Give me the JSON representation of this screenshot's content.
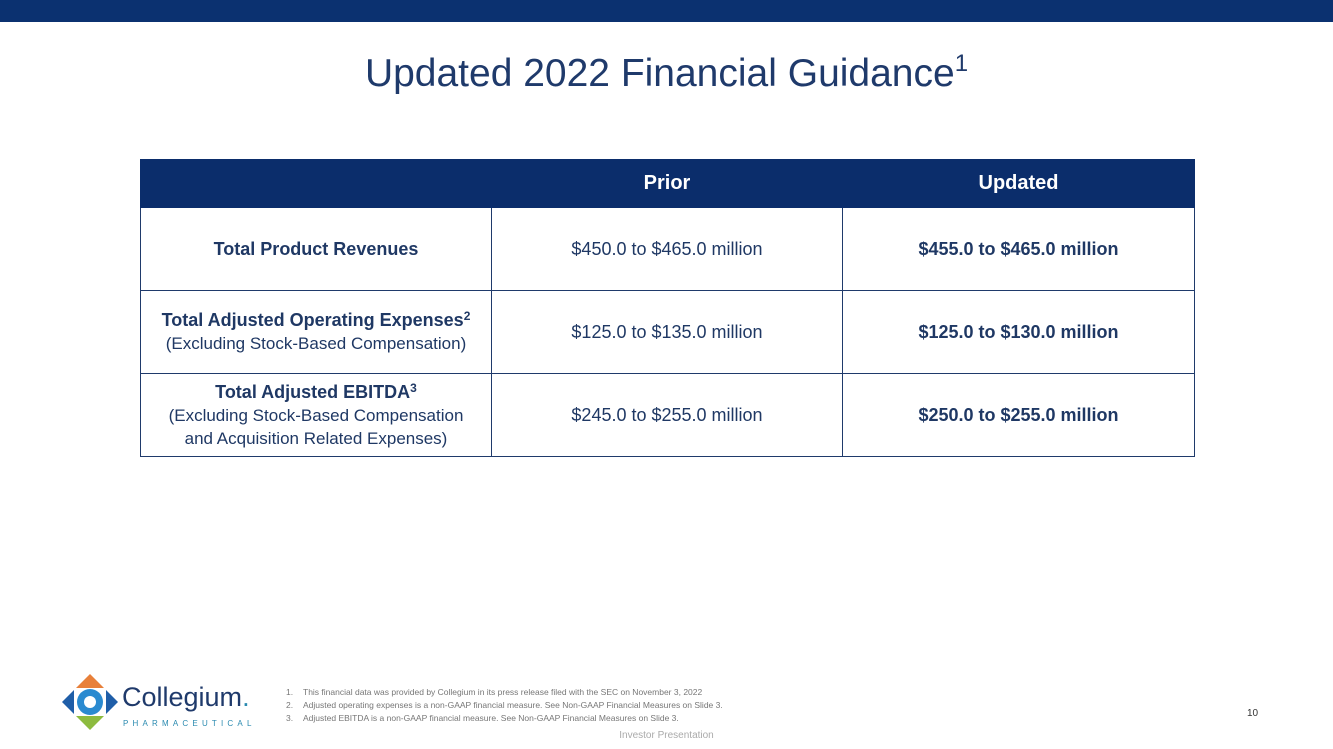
{
  "header": {
    "title": "Updated 2022 Financial Guidance",
    "title_sup": "1"
  },
  "table": {
    "columns": [
      "Prior",
      "Updated"
    ],
    "rows": [
      {
        "label": "Total Product Revenues",
        "prior": "$450.0 to $465.0 million",
        "updated": "$455.0 to $465.0 million"
      },
      {
        "label": "Total Adjusted Operating Expenses",
        "sup": "2",
        "note": [
          "(Excluding Stock-Based Compensation)"
        ],
        "prior": "$125.0 to $135.0 million",
        "updated": "$125.0 to $130.0 million"
      },
      {
        "label": "Total Adjusted EBITDA",
        "sup": "3",
        "note": [
          "(Excluding Stock-Based Compensation",
          "and Acquisition Related Expenses)"
        ],
        "prior": "$245.0 to $255.0 million",
        "updated": "$250.0 to $255.0 million"
      }
    ]
  },
  "footer": {
    "brand": "Collegium",
    "brand_mark": ".",
    "brand_sub": "PHARMACEUTICAL",
    "footnotes": [
      {
        "number": "1.",
        "text": "This financial data was provided by Collegium in its press release filed with the SEC on November 3, 2022"
      },
      {
        "number": "2.",
        "text": "Adjusted operating expenses is a non-GAAP financial measure. See Non-GAAP Financial Measures on Slide 3."
      },
      {
        "number": "3.",
        "text": "Adjusted EBITDA is a non-GAAP financial measure. See Non-GAAP Financial Measures on Slide 3."
      }
    ],
    "page_number": "10",
    "presentation": "Investor Presentation"
  }
}
